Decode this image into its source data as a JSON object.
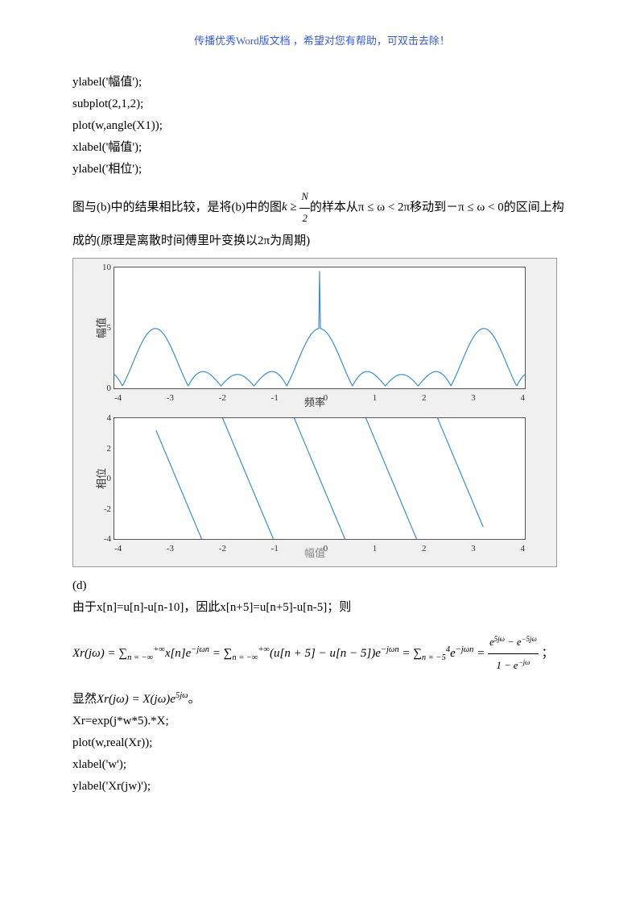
{
  "header": "传播优秀Word版文档 ，希望对您有帮助，可双击去除！",
  "code1": [
    "ylabel('幅值');",
    "subplot(2,1,2);",
    "plot(w,angle(X1));",
    "xlabel('幅值');",
    "ylabel('相位');"
  ],
  "para1_a": "图与(b)中的结果相比较，是将(b)中的图",
  "para1_math1": "k ≥ ",
  "para1_frac_num": "N",
  "para1_frac_den": "2",
  "para1_b": "的样本从π ≤ ω < 2π移动到",
  "para1_c": "－π ≤ ω < 0",
  "para1_d": "的区间上构成的(原理是离散时间傅里叶变换以2π为周期)",
  "chart1": {
    "ylabel": "幅值",
    "xlabel": "频率",
    "xticks": [
      "-4",
      "-3",
      "-2",
      "-1",
      "0",
      "1",
      "2",
      "3",
      "4"
    ],
    "yticks": [
      "10",
      "5",
      "0"
    ],
    "line_color": "#3d8ec9",
    "bg": "#ffffff"
  },
  "chart2": {
    "ylabel": "相位",
    "xlabel": "幅值",
    "xticks": [
      "-4",
      "-3",
      "-2",
      "-1",
      "0",
      "1",
      "2",
      "3",
      "4"
    ],
    "yticks": [
      "4",
      "2",
      "0",
      "-2",
      "-4"
    ],
    "line_color": "#3d8ec9",
    "bg": "#ffffff"
  },
  "section_d": "(d)",
  "para2": "由于x[n]=u[n]-u[n-10]，因此x[n+5]=u[n+5]-u[n-5]；则",
  "eq1": "Xr(jω) = ∑",
  "eq1_sub1": "n = −∞",
  "eq1_sup1": "+∞",
  "eq1_mid1": "x[n]e",
  "eq1_exp1": "−jωn",
  "eq1_eq2": " = ∑",
  "eq1_sub2": "n = −∞",
  "eq1_sup2": "+∞",
  "eq1_mid2": "(u[n + 5] − u[n − 5])e",
  "eq1_exp2": "−jωn",
  "eq1_eq3": " = ∑",
  "eq1_sub3": "n = −5",
  "eq1_sup3": "4",
  "eq1_mid3": "e",
  "eq1_exp3": "−jωn",
  "eq1_eq4": " = ",
  "eq1_frac_num_a": "e",
  "eq1_frac_num_exp1": "5jω",
  "eq1_frac_num_b": " − e",
  "eq1_frac_num_exp2": "−5jω",
  "eq1_frac_den_a": "1 − e",
  "eq1_frac_den_exp": "−jω",
  "eq1_end": "；",
  "para3_a": "显然",
  "para3_math": "Xr(jω) = X(jω)e",
  "para3_exp": "5jω",
  "para3_b": "。",
  "code2": [
    "Xr=exp(j*w*5).*X;",
    "plot(w,real(Xr));",
    "xlabel('w');",
    "ylabel('Xr(jw)');"
  ]
}
